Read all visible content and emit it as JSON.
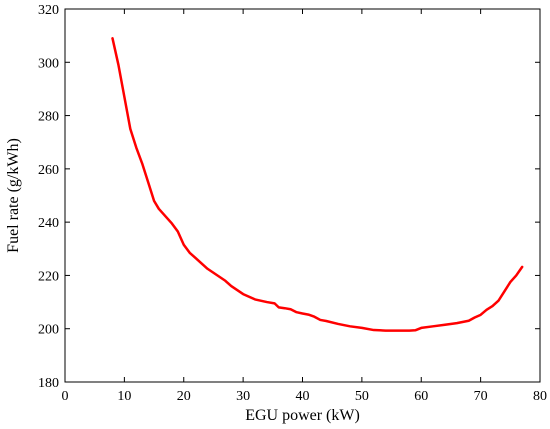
{
  "chart_data": {
    "type": "line",
    "title": "",
    "xlabel": "EGU power (kW)",
    "ylabel": "Fuel rate (g/kWh)",
    "xlim": [
      0,
      80
    ],
    "ylim": [
      180,
      320
    ],
    "xticks": [
      0,
      10,
      20,
      30,
      40,
      50,
      60,
      70,
      80
    ],
    "yticks": [
      180,
      200,
      220,
      240,
      260,
      280,
      300,
      320
    ],
    "xtick_labels": [
      "0",
      "10",
      "20",
      "30",
      "40",
      "50",
      "60",
      "70",
      "80"
    ],
    "ytick_labels": [
      "180",
      "200",
      "220",
      "240",
      "260",
      "280",
      "300",
      "320"
    ],
    "grid": false,
    "series": [
      {
        "color": "#ff0000",
        "x": [
          8,
          9,
          10,
          11,
          12,
          13,
          14,
          15,
          15.8,
          17,
          18,
          19,
          20,
          21,
          22,
          23,
          24,
          25,
          27,
          28,
          30,
          32,
          34,
          35.3,
          36,
          37,
          38,
          39,
          40,
          41,
          42,
          43,
          44,
          46,
          48,
          50,
          52,
          54,
          56,
          58,
          59,
          60,
          62,
          64,
          66,
          68,
          69,
          70,
          71,
          72,
          73,
          74,
          75,
          76,
          77
        ],
        "y": [
          309,
          299,
          287,
          275,
          268,
          262,
          255,
          248,
          245,
          242,
          239.5,
          236.5,
          231.5,
          228.5,
          226.5,
          224.5,
          222.5,
          221,
          218,
          216,
          213,
          211,
          210,
          209.5,
          208,
          207.7,
          207.3,
          206.2,
          205.7,
          205.3,
          204.5,
          203.3,
          202.9,
          201.8,
          200.9,
          200.3,
          199.5,
          199.3,
          199.3,
          199.3,
          199.4,
          200.3,
          200.9,
          201.5,
          202.1,
          203,
          204.2,
          205.2,
          207.1,
          208.5,
          210.5,
          214,
          217.5,
          220,
          223.2
        ]
      }
    ]
  }
}
